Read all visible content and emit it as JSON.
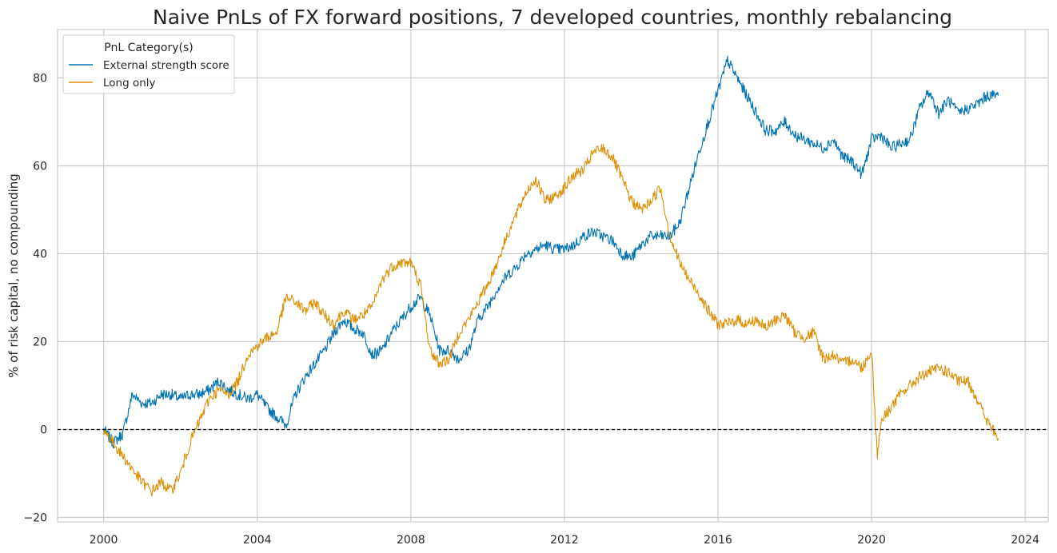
{
  "chart_data": {
    "type": "line",
    "title": "Naive PnLs of FX forward positions, 7 developed countries, monthly rebalancing",
    "xlabel": "",
    "ylabel": "% of risk capital, no compounding",
    "xlim": [
      1998.8,
      2024.6
    ],
    "ylim": [
      -21,
      91
    ],
    "x_ticks": [
      2000,
      2004,
      2008,
      2012,
      2016,
      2020,
      2024
    ],
    "x_tick_labels": [
      "2000",
      "2004",
      "2008",
      "2012",
      "2016",
      "2020",
      "2024"
    ],
    "y_ticks": [
      -20,
      0,
      20,
      40,
      60,
      80
    ],
    "y_tick_labels": [
      "−20",
      "0",
      "20",
      "40",
      "60",
      "80"
    ],
    "grid": true,
    "zero_line": {
      "y": 0,
      "style": "dashed",
      "color": "#000000"
    },
    "legend": {
      "title": "PnL Category(s)",
      "placement": "top-left",
      "entries": [
        "External strength score",
        "Long only"
      ]
    },
    "colors": {
      "External strength score": "#0173b2",
      "Long only": "#de8f05"
    },
    "series": [
      {
        "name": "External strength score",
        "x": [
          2000.0,
          2000.25,
          2000.5,
          2000.75,
          2001.0,
          2001.25,
          2001.5,
          2001.75,
          2002.0,
          2002.25,
          2002.5,
          2002.75,
          2003.0,
          2003.25,
          2003.5,
          2003.75,
          2004.0,
          2004.25,
          2004.5,
          2004.75,
          2005.0,
          2005.25,
          2005.5,
          2005.75,
          2006.0,
          2006.25,
          2006.5,
          2006.75,
          2007.0,
          2007.25,
          2007.5,
          2007.75,
          2008.0,
          2008.25,
          2008.5,
          2008.75,
          2009.0,
          2009.25,
          2009.5,
          2009.75,
          2010.0,
          2010.25,
          2010.5,
          2010.75,
          2011.0,
          2011.25,
          2011.5,
          2011.75,
          2012.0,
          2012.25,
          2012.5,
          2012.75,
          2013.0,
          2013.25,
          2013.5,
          2013.75,
          2014.0,
          2014.25,
          2014.5,
          2014.75,
          2015.0,
          2015.25,
          2015.5,
          2015.75,
          2016.0,
          2016.25,
          2016.5,
          2016.75,
          2017.0,
          2017.25,
          2017.5,
          2017.75,
          2018.0,
          2018.25,
          2018.5,
          2018.75,
          2019.0,
          2019.25,
          2019.5,
          2019.75,
          2020.0,
          2020.25,
          2020.5,
          2020.75,
          2021.0,
          2021.25,
          2021.5,
          2021.75,
          2022.0,
          2022.25,
          2022.5,
          2022.75,
          2023.0,
          2023.3
        ],
        "values": [
          0,
          -3,
          -1,
          8,
          6,
          6,
          8,
          8,
          7,
          8,
          8,
          9,
          11,
          9,
          8,
          7,
          8,
          5,
          3,
          1,
          8,
          12,
          15,
          18,
          22,
          25,
          23,
          22,
          17,
          18,
          22,
          25,
          28,
          30,
          26,
          18,
          18,
          16,
          18,
          25,
          28,
          32,
          35,
          37,
          40,
          41,
          42,
          41,
          41,
          42,
          44,
          45,
          44,
          43,
          40,
          39,
          42,
          44,
          44,
          44,
          47,
          55,
          63,
          70,
          77,
          84,
          80,
          76,
          72,
          68,
          68,
          70,
          67,
          66,
          65,
          64,
          66,
          62,
          61,
          58,
          66,
          67,
          64,
          65,
          66,
          73,
          77,
          72,
          75,
          72,
          73,
          74,
          76,
          76
        ]
      },
      {
        "name": "Long only",
        "x": [
          2000.0,
          2000.25,
          2000.5,
          2000.75,
          2001.0,
          2001.25,
          2001.5,
          2001.75,
          2002.0,
          2002.25,
          2002.5,
          2002.75,
          2003.0,
          2003.25,
          2003.5,
          2003.75,
          2004.0,
          2004.25,
          2004.5,
          2004.75,
          2005.0,
          2005.25,
          2005.5,
          2005.75,
          2006.0,
          2006.25,
          2006.5,
          2006.75,
          2007.0,
          2007.25,
          2007.5,
          2007.75,
          2008.0,
          2008.25,
          2008.5,
          2008.75,
          2009.0,
          2009.25,
          2009.5,
          2009.75,
          2010.0,
          2010.25,
          2010.5,
          2010.75,
          2011.0,
          2011.25,
          2011.5,
          2011.75,
          2012.0,
          2012.25,
          2012.5,
          2012.75,
          2013.0,
          2013.25,
          2013.5,
          2013.75,
          2014.0,
          2014.25,
          2014.5,
          2014.75,
          2015.0,
          2015.25,
          2015.5,
          2015.75,
          2016.0,
          2016.25,
          2016.5,
          2016.75,
          2017.0,
          2017.25,
          2017.5,
          2017.75,
          2018.0,
          2018.25,
          2018.5,
          2018.75,
          2019.0,
          2019.25,
          2019.5,
          2019.75,
          2020.0,
          2020.15,
          2020.25,
          2020.5,
          2020.75,
          2021.0,
          2021.25,
          2021.5,
          2021.75,
          2022.0,
          2022.25,
          2022.5,
          2022.75,
          2023.0,
          2023.3
        ],
        "values": [
          0,
          -3,
          -6,
          -9,
          -12,
          -14,
          -12,
          -14,
          -10,
          -3,
          2,
          7,
          9,
          8,
          11,
          17,
          19,
          21,
          22,
          30,
          29,
          27,
          29,
          26,
          24,
          27,
          25,
          26,
          28,
          34,
          37,
          38,
          38,
          33,
          18,
          15,
          16,
          22,
          25,
          29,
          33,
          38,
          44,
          49,
          54,
          57,
          52,
          53,
          55,
          58,
          59,
          63,
          64,
          62,
          57,
          52,
          50,
          52,
          55,
          44,
          38,
          34,
          31,
          27,
          24,
          24,
          25,
          24,
          25,
          23,
          25,
          26,
          22,
          21,
          22,
          16,
          17,
          15,
          16,
          14,
          18,
          -6,
          2,
          5,
          8,
          10,
          12,
          13,
          14,
          13,
          11,
          11,
          7,
          2,
          -2
        ]
      }
    ]
  }
}
